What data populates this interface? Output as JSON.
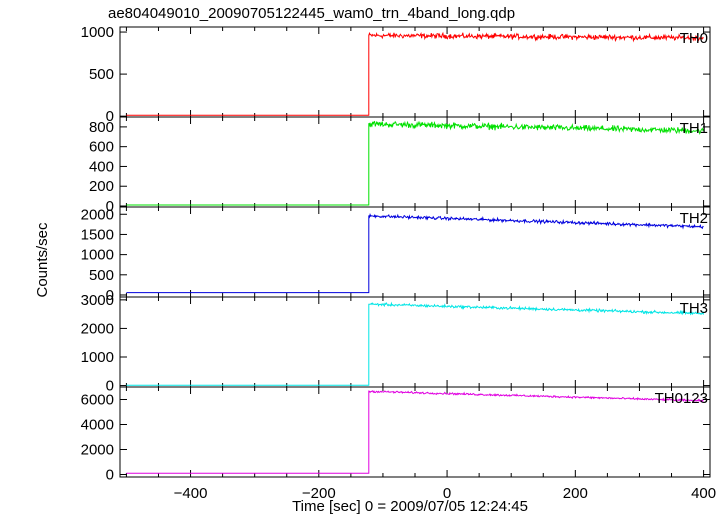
{
  "chart_data": {
    "type": "line",
    "title": "ae804049010_20090705122445_wam0_trn_4band_long.qdp",
    "xlabel": "Time [sec] 0 = 2009/07/05 12:24:45",
    "ylabel": "Counts/sec",
    "xlim": [
      -510,
      410
    ],
    "x_ticks": [
      -400,
      -200,
      0,
      200,
      400
    ],
    "x_tick_labels": [
      "−400",
      "−200",
      "0",
      "200",
      "400"
    ],
    "step_time": -122,
    "x_end": 400,
    "panels": [
      {
        "name": "TH0",
        "color": "#ff0000",
        "ylim": [
          -10,
          1060
        ],
        "yticks": [
          0,
          500,
          1000
        ],
        "yticklabels": [
          "0",
          "500",
          "1000"
        ],
        "pre_level": 10,
        "post_start": 960,
        "post_end": 930,
        "noise": 45
      },
      {
        "name": "TH1",
        "color": "#00e000",
        "ylim": [
          -10,
          900
        ],
        "yticks": [
          0,
          200,
          400,
          600,
          800
        ],
        "yticklabels": [
          "0",
          "200",
          "400",
          "600",
          "800"
        ],
        "pre_level": 10,
        "post_start": 830,
        "post_end": 760,
        "noise": 45
      },
      {
        "name": "TH2",
        "color": "#0000dd",
        "ylim": [
          -50,
          2180
        ],
        "yticks": [
          0,
          500,
          1000,
          1500,
          2000
        ],
        "yticklabels": [
          "0",
          "500",
          "1000",
          "1500",
          "2000"
        ],
        "pre_level": 60,
        "post_start": 1960,
        "post_end": 1690,
        "noise": 55
      },
      {
        "name": "TH3",
        "color": "#00e5e5",
        "ylim": [
          -50,
          3100
        ],
        "yticks": [
          0,
          1000,
          2000,
          3000
        ],
        "yticklabels": [
          "0",
          "1000",
          "2000",
          "3000"
        ],
        "pre_level": 10,
        "post_start": 2850,
        "post_end": 2520,
        "noise": 70
      },
      {
        "name": "TH0123",
        "color": "#e000e0",
        "ylim": [
          -200,
          7000
        ],
        "yticks": [
          0,
          2000,
          4000,
          6000
        ],
        "yticklabels": [
          "0",
          "2000",
          "4000",
          "6000"
        ],
        "pre_level": 100,
        "post_start": 6650,
        "post_end": 5900,
        "noise": 110
      }
    ],
    "grid": false
  }
}
